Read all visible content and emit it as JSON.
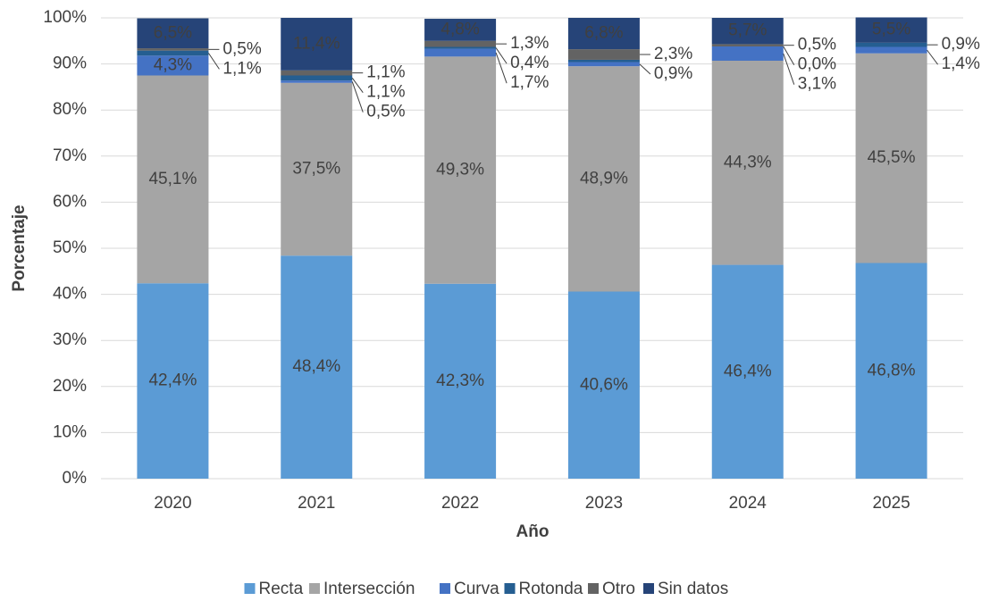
{
  "chart_data": {
    "type": "stacked_bar",
    "categories": [
      "2020",
      "2021",
      "2022",
      "2023",
      "2024",
      "2025"
    ],
    "x_label": "Año",
    "y_label": "Porcentaje",
    "ylim": [
      0,
      100
    ],
    "yticks": [
      {
        "value": 0,
        "label": "0%"
      },
      {
        "value": 10,
        "label": "10%"
      },
      {
        "value": 20,
        "label": "20%"
      },
      {
        "value": 30,
        "label": "30%"
      },
      {
        "value": 40,
        "label": "40%"
      },
      {
        "value": 50,
        "label": "50%"
      },
      {
        "value": 60,
        "label": "60%"
      },
      {
        "value": 70,
        "label": "70%"
      },
      {
        "value": 80,
        "label": "80%"
      },
      {
        "value": 90,
        "label": "90%"
      },
      {
        "value": 100,
        "label": "100%"
      }
    ],
    "grid": true,
    "legend": "bottom",
    "series": [
      {
        "name": "Recta",
        "color": "#5b9bd5",
        "values": [
          42.4,
          48.4,
          42.3,
          40.6,
          46.4,
          46.8
        ],
        "value_labels": [
          "42,4%",
          "48,4%",
          "42,3%",
          "40,6%",
          "46,4%",
          "46,8%"
        ]
      },
      {
        "name": "Intersección",
        "color": "#a5a5a5",
        "values": [
          45.1,
          37.5,
          49.3,
          48.9,
          44.3,
          45.5
        ],
        "value_labels": [
          "45,1%",
          "37,5%",
          "49,3%",
          "48,9%",
          "44,3%",
          "45,5%"
        ]
      },
      {
        "name": "Curva",
        "color": "#4472c4",
        "values": [
          4.3,
          0.5,
          1.7,
          0.9,
          3.1,
          1.4
        ],
        "value_labels": [
          "4,3%",
          "0,5%",
          "1,7%",
          "0,9%",
          "3,1%",
          "1,4%"
        ]
      },
      {
        "name": "Rotonda",
        "color": "#255e91",
        "values": [
          1.1,
          1.1,
          0.4,
          0.5,
          0.0,
          0.9
        ],
        "value_labels": [
          "1,1%",
          "1,1%",
          "0,4%",
          null,
          "0,0%",
          "0,9%"
        ]
      },
      {
        "name": "Otro",
        "color": "#636363",
        "values": [
          0.5,
          1.1,
          1.3,
          2.3,
          0.5,
          0
        ],
        "value_labels": [
          "0,5%",
          "1,1%",
          "1,3%",
          "2,3%",
          "0,5%",
          null
        ]
      },
      {
        "name": "Sin datos",
        "color": "#264478",
        "values": [
          6.5,
          11.4,
          4.8,
          6.8,
          5.7,
          5.5
        ],
        "value_labels": [
          "6,5%",
          "11,4%",
          "4,8%",
          "6,8%",
          "5,7%",
          "5,5%"
        ]
      }
    ]
  }
}
